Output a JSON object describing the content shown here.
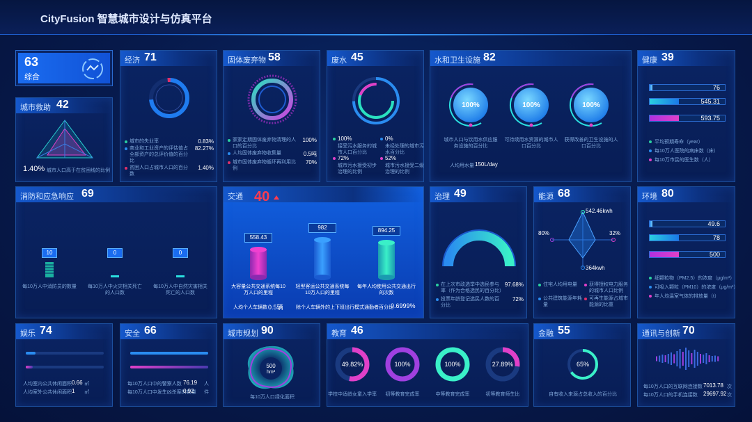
{
  "header": {
    "title": "CityFusion 智慧城市设计与仿真平台"
  },
  "overall": {
    "score": 63,
    "label": "综合"
  },
  "panels": {
    "rescue": {
      "title": "城市救助",
      "score": 42,
      "value": "1.40%",
      "label": "城市人口高于在贫困线的比例"
    },
    "economy": {
      "title": "经济",
      "score": 71,
      "items": [
        {
          "label": "城市的失业率",
          "value": "0.83%"
        },
        {
          "label": "商业和工业资产的评估值占全部资产的总评价值的百分比",
          "value": "82.27%"
        },
        {
          "label": "贫困人口占城市人口的百分数",
          "value": "1.40%"
        }
      ]
    },
    "solid_waste": {
      "title": "固体废弃物",
      "score": 58,
      "items": [
        {
          "label": "家家定期固体废弃物清理的人口的百分比",
          "value": "100%"
        },
        {
          "label": "人均固体废弃物收集量",
          "value": "0.5吨"
        },
        {
          "label": "城市固体废弃物循环再利用比例",
          "value": "70%"
        }
      ]
    },
    "wastewater": {
      "title": "废水",
      "score": 45,
      "items": [
        {
          "value": "100%",
          "label": "接受污水服务的城市人口百分比"
        },
        {
          "value": "0%",
          "label": "未经处理的城市污水百分比"
        },
        {
          "value": "72%",
          "label": "城市污水接受初步治理的比例"
        },
        {
          "value": "52%",
          "label": "城市污水接受二级治理的比例"
        }
      ]
    },
    "water": {
      "title": "水和卫生设施",
      "score": 82,
      "gauges": [
        {
          "value": "100%",
          "label": "城市人口与饮用水供应服务设施的百分比"
        },
        {
          "value": "100%",
          "label": "可持续用水资源的城市人口百分比"
        },
        {
          "value": "100%",
          "label": "获得改善的卫生设施的人口百分比"
        }
      ],
      "footer": {
        "label": "人均用水量",
        "value": "150L/day"
      }
    },
    "health": {
      "title": "健康",
      "score": 39,
      "bars": [
        {
          "value": 76,
          "label": "平均预期寿命（year）"
        },
        {
          "value": 545.31,
          "label": "每10万人医院的病床数（床）"
        },
        {
          "value": 593.75,
          "label": "每10万市民的医生数（人）"
        }
      ]
    },
    "fire": {
      "title": "消防和应急响应",
      "score": 69,
      "items": [
        {
          "value": 10,
          "label": "每10万人中消防员的数量"
        },
        {
          "value": 0,
          "label": "每10万人中火灾相关死亡的人口数"
        },
        {
          "value": 0,
          "label": "每10万人中自然灾害相关死亡的人口数"
        }
      ]
    },
    "transport": {
      "title": "交通",
      "score": 40,
      "items": [
        {
          "value": 558.43,
          "label": "大容量公共交通系统每10万人口的里程"
        },
        {
          "value": 982,
          "label": "轻型客运公共交通系统每10万人口的里程"
        },
        {
          "value": 894.25,
          "label": "每年人均使用公共交通出行的次数"
        }
      ],
      "footer": [
        {
          "label": "人均个人车辆数",
          "value": "0.5辆"
        },
        {
          "label": "除个人车辆外的上下班出行模式通勤者百分比",
          "value": "0.6999%"
        }
      ]
    },
    "governance": {
      "title": "治理",
      "score": 49,
      "items": [
        {
          "label": "在上次市政选举中选民参与率（作为合格选民的百分比）",
          "value": "97.68%"
        },
        {
          "label": "投票年龄登记选民人数的百分比",
          "value": "72%"
        }
      ]
    },
    "energy": {
      "title": "能源",
      "score": 68,
      "points": [
        "542.46kwh",
        "32%",
        "364kwh",
        "80%"
      ],
      "legend": [
        "住宅人均用电量",
        "获得授权电力服务的城市人口比例",
        "公共建筑能源年耗量",
        "可再生能源占城市能源的比重"
      ]
    },
    "environment": {
      "title": "环境",
      "score": 80,
      "bars": [
        {
          "value": 49.6,
          "label": "细颗粒物（PM2.5）的浓度（μg/m³）"
        },
        {
          "value": 78,
          "label": "可吸入颗粒（PM10）的浓度（μg/m³）"
        },
        {
          "value": 500,
          "label": "年人均温室气体的排放量（t）"
        }
      ]
    },
    "recreation": {
      "title": "娱乐",
      "score": 74,
      "items": [
        {
          "label": "人均室内公共休闲面积",
          "value": 0.66,
          "unit": "㎡"
        },
        {
          "label": "人均室外公共休闲面积",
          "value": 1,
          "unit": "㎡"
        }
      ]
    },
    "safety": {
      "title": "安全",
      "score": 66,
      "items": [
        {
          "label": "每10万人口中的警察人数",
          "value": 76.19,
          "unit": "人"
        },
        {
          "label": "每10万人口中发生凶杀案的数量",
          "value": 0.92,
          "unit": "件"
        }
      ]
    },
    "planning": {
      "title": "城市规划",
      "score": 90,
      "value": 500,
      "unit": "hm²",
      "label": "每10万人口绿化面积"
    },
    "education": {
      "title": "教育",
      "score": 46,
      "items": [
        {
          "value": "49.82%",
          "label": "学校中适龄女童入学率"
        },
        {
          "value": "100%",
          "label": "初等教育完成率"
        },
        {
          "value": "100%",
          "label": "中等教育完成率"
        },
        {
          "value": "27.89%",
          "label": "初等教育师生比"
        }
      ]
    },
    "finance": {
      "title": "金融",
      "score": 55,
      "value": "65%",
      "label": "自有收入来源占总收入的百分比"
    },
    "communication": {
      "title": "通讯与创新",
      "score": 70,
      "items": [
        {
          "label": "每10万人口的互联网连接数",
          "value": 7013.78,
          "unit": "次"
        },
        {
          "label": "每10万人口的手机连接数",
          "value": 29697.92,
          "unit": "次"
        }
      ]
    }
  }
}
